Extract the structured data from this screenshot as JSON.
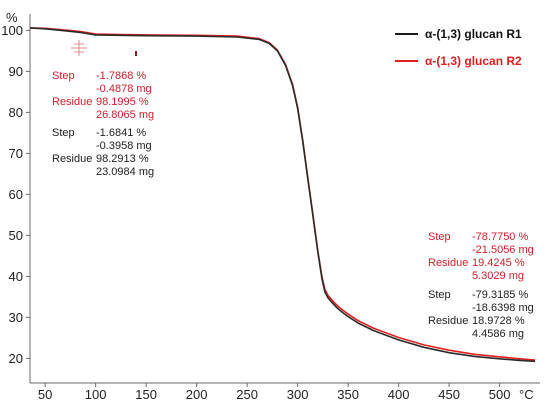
{
  "chart_data": {
    "type": "line",
    "y_unit_label": "%",
    "x_unit_label": "°C",
    "xlim": [
      35,
      540
    ],
    "ylim": [
      14,
      104
    ],
    "x_ticks": [
      50,
      100,
      150,
      200,
      250,
      300,
      350,
      400,
      450,
      500
    ],
    "y_ticks": [
      20,
      30,
      40,
      50,
      60,
      70,
      80,
      90,
      100
    ],
    "colors": {
      "r1": "#2b2b2b",
      "r2": "#e02020",
      "annotation_red": "#d0202a",
      "annotation_black": "#222222",
      "axis": "#6a6a6a"
    },
    "series": [
      {
        "name": "α-(1,3) glucan R1",
        "color": "#2b2b2b",
        "x": [
          35,
          50,
          70,
          85,
          100,
          150,
          200,
          240,
          262,
          272,
          280,
          288,
          295,
          300,
          305,
          310,
          315,
          320,
          324,
          327,
          330,
          333,
          336,
          340,
          345,
          350,
          360,
          375,
          400,
          425,
          450,
          475,
          500,
          520,
          535
        ],
        "y": [
          100.6,
          100.4,
          99.9,
          99.5,
          98.9,
          98.7,
          98.6,
          98.4,
          97.8,
          96.8,
          95.0,
          91.5,
          86.5,
          81.0,
          73.0,
          64.0,
          55.0,
          46.0,
          39.5,
          36.2,
          34.8,
          33.9,
          33.1,
          32.1,
          31.1,
          30.2,
          28.6,
          26.8,
          24.5,
          22.7,
          21.4,
          20.5,
          19.9,
          19.5,
          19.3
        ]
      },
      {
        "name": "α-(1,3) glucan R2",
        "color": "#e02020",
        "x": [
          35,
          50,
          70,
          85,
          100,
          150,
          200,
          240,
          262,
          272,
          280,
          288,
          295,
          300,
          305,
          310,
          315,
          320,
          324,
          327,
          330,
          333,
          336,
          340,
          345,
          350,
          360,
          375,
          400,
          425,
          450,
          475,
          500,
          520,
          535
        ],
        "y": [
          100.6,
          100.5,
          100.1,
          99.7,
          99.1,
          98.9,
          98.8,
          98.6,
          98.0,
          97.0,
          95.2,
          91.7,
          86.8,
          81.3,
          73.3,
          64.3,
          55.3,
          46.3,
          40.0,
          36.8,
          35.4,
          34.5,
          33.7,
          32.7,
          31.7,
          30.8,
          29.2,
          27.4,
          25.1,
          23.3,
          22.0,
          21.0,
          20.4,
          19.9,
          19.6
        ]
      }
    ],
    "legend": [
      {
        "label": "α-(1,3) glucan R1",
        "color": "#1a1a1a"
      },
      {
        "label": "α-(1,3) glucan R2",
        "color": "#e02020"
      }
    ],
    "annotations": {
      "left_red": {
        "color": "#d0202a",
        "step_label": "Step",
        "step_pct": "-1.7868 %",
        "step_mg": "-0.4878 mg",
        "residue_label": "Residue",
        "residue_pct": "98.1995 %",
        "residue_mg": "26.8065 mg"
      },
      "left_black": {
        "color": "#222222",
        "step_label": "Step",
        "step_pct": "-1.6841 %",
        "step_mg": "-0.3958 mg",
        "residue_label": "Residue",
        "residue_pct": "98.2913 %",
        "residue_mg": "23.0984 mg"
      },
      "right_red": {
        "color": "#d0202a",
        "step_label": "Step",
        "step_pct": "-78.7750 %",
        "step_mg": "-21.5056 mg",
        "residue_label": "Residue",
        "residue_pct": "19.4245 %",
        "residue_mg": "5.3029 mg"
      },
      "right_black": {
        "color": "#222222",
        "step_label": "Step",
        "step_pct": "-79.3185 %",
        "step_mg": "-18.6398 mg",
        "residue_label": "Residue",
        "residue_pct": "18.9728 %",
        "residue_mg": "4.4586 mg"
      }
    }
  }
}
